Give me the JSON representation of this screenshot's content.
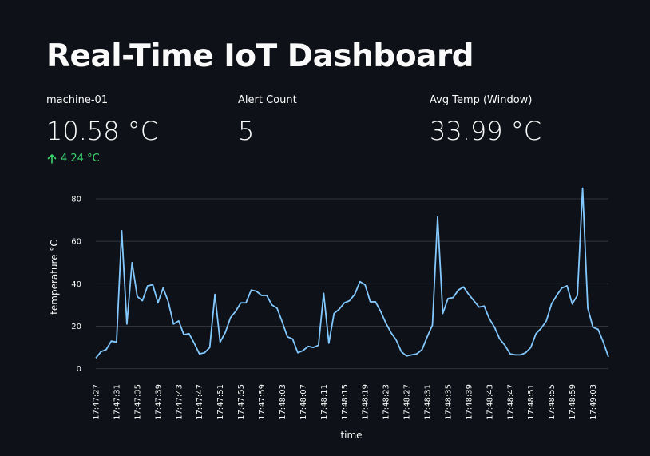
{
  "header": {
    "title": "Real-Time IoT Dashboard"
  },
  "metrics": [
    {
      "label": "machine-01",
      "value": "10.58 °C",
      "delta": "4.24 °C",
      "delta_direction": "up",
      "delta_color": "#3dd56d"
    },
    {
      "label": "Alert Count",
      "value": "5"
    },
    {
      "label": "Avg Temp (Window)",
      "value": "33.99 °C"
    }
  ],
  "chart_data": {
    "type": "line",
    "xlabel": "time",
    "ylabel": "temperature °C",
    "ylim": [
      -2,
      86
    ],
    "yticks": [
      0,
      20,
      40,
      60,
      80
    ],
    "grid": true,
    "line_color": "#83c9ff",
    "x_start": "17:47:27",
    "x_step_seconds": 1,
    "x_tick_labels": [
      "17:47:27",
      "17:47:31",
      "17:47:35",
      "17:47:39",
      "17:47:43",
      "17:47:47",
      "17:47:51",
      "17:47:55",
      "17:47:59",
      "17:48:03",
      "17:48:07",
      "17:48:11",
      "17:48:15",
      "17:48:19",
      "17:48:23",
      "17:48:27",
      "17:48:31",
      "17:48:35",
      "17:48:39",
      "17:48:43",
      "17:48:47",
      "17:48:51",
      "17:48:55",
      "17:48:59",
      "17:49:03"
    ],
    "values": [
      5,
      8,
      9,
      13,
      12.5,
      65,
      21,
      50,
      34,
      32,
      39,
      39.5,
      31,
      38,
      31.5,
      21,
      22.5,
      16,
      16.5,
      12,
      7,
      7.5,
      10,
      35,
      12.5,
      17,
      24,
      27,
      31,
      31,
      37,
      36.5,
      34.5,
      34.5,
      30,
      28.5,
      22,
      15,
      14,
      7.5,
      8.5,
      10.5,
      10,
      11,
      35.5,
      12,
      26,
      28,
      31,
      32,
      35,
      41,
      39.5,
      31.5,
      31.5,
      27,
      21.5,
      17,
      13.5,
      8,
      6,
      6.5,
      7,
      9,
      15,
      20.5,
      71.5,
      26,
      33,
      33.5,
      37,
      38.5,
      35,
      32,
      29,
      29.5,
      23.5,
      19.5,
      14,
      11,
      7,
      6.5,
      6.5,
      7.5,
      10,
      16.5,
      19,
      22.5,
      30.5,
      34.5,
      38,
      39,
      30.5,
      34.5,
      85,
      28.5,
      19.5,
      18.5,
      12.5,
      5.5
    ]
  }
}
